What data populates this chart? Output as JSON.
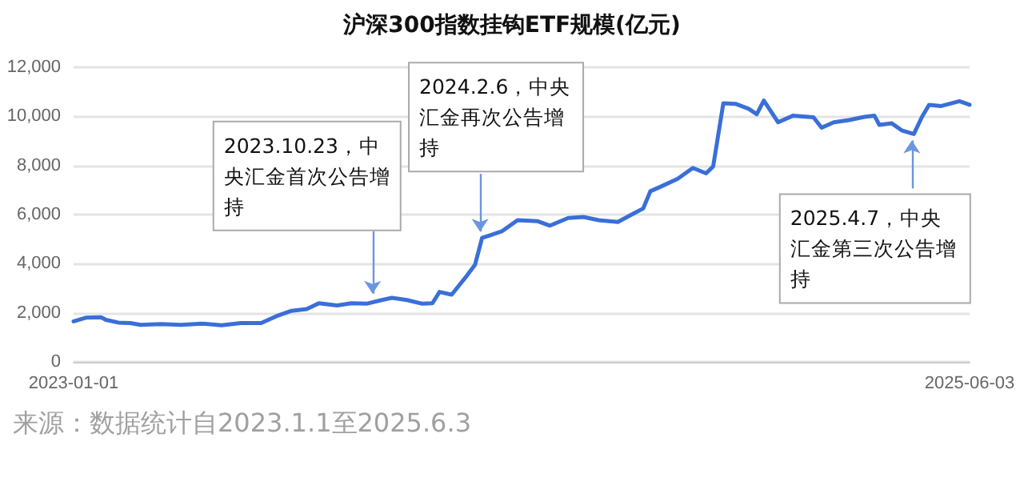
{
  "chart_data": {
    "type": "line",
    "title": "沪深300指数挂钩ETF规模(亿元)",
    "x": [
      "2023-01-01",
      "2023-01-13",
      "2023-01-28",
      "2023-02-02",
      "2023-02-14",
      "2023-02-26",
      "2023-03-08",
      "2023-03-28",
      "2023-04-17",
      "2023-05-07",
      "2023-05-27",
      "2023-06-15",
      "2023-07-05",
      "2023-07-20",
      "2023-08-04",
      "2023-08-19",
      "2023-08-31",
      "2023-09-18",
      "2023-10-02",
      "2023-10-17",
      "2023-11-01",
      "2023-11-11",
      "2023-11-26",
      "2023-12-11",
      "2023-12-21",
      "2023-12-28",
      "2024-01-09",
      "2024-01-24",
      "2024-02-01",
      "2024-02-08",
      "2024-02-16",
      "2024-02-28",
      "2024-03-14",
      "2024-04-03",
      "2024-04-15",
      "2024-05-03",
      "2024-05-18",
      "2024-06-02",
      "2024-06-21",
      "2024-07-06",
      "2024-07-16",
      "2024-07-23",
      "2024-08-04",
      "2024-08-19",
      "2024-09-03",
      "2024-09-16",
      "2024-09-23",
      "2024-10-03",
      "2024-10-15",
      "2024-10-28",
      "2024-11-05",
      "2024-11-12",
      "2024-11-26",
      "2024-12-11",
      "2024-12-31",
      "2025-01-08",
      "2025-01-20",
      "2025-02-04",
      "2025-02-19",
      "2025-03-01",
      "2025-03-06",
      "2025-03-18",
      "2025-03-28",
      "2025-04-09",
      "2025-04-17",
      "2025-04-24",
      "2025-05-06",
      "2025-05-24",
      "2025-06-03"
    ],
    "series": [
      {
        "color": "#3a6fd8",
        "values": [
          1650,
          1800,
          1820,
          1710,
          1600,
          1580,
          1510,
          1540,
          1510,
          1560,
          1490,
          1580,
          1580,
          1860,
          2080,
          2150,
          2390,
          2300,
          2390,
          2370,
          2520,
          2610,
          2520,
          2370,
          2390,
          2850,
          2740,
          3510,
          3950,
          5050,
          5160,
          5330,
          5770,
          5730,
          5550,
          5860,
          5900,
          5770,
          5700,
          6030,
          6250,
          6950,
          7170,
          7460,
          7900,
          7680,
          7960,
          10530,
          10510,
          10310,
          10090,
          10640,
          9760,
          10030,
          9960,
          9540,
          9760,
          9850,
          9980,
          10030,
          9650,
          9720,
          9430,
          9280,
          9980,
          10470,
          10420,
          10620,
          10470
        ]
      }
    ],
    "xlim": [
      "2023-01-01",
      "2025-06-03"
    ],
    "xticks": [
      "2023-01-01",
      "2025-06-03"
    ],
    "ylim": [
      0,
      12000
    ],
    "yticks": [
      0,
      {
        "value": 2000,
        "label": "2,000"
      },
      {
        "value": 4000,
        "label": "4,000"
      },
      {
        "value": 6000,
        "label": "6,000"
      },
      {
        "value": 8000,
        "label": "8,000"
      },
      {
        "value": 10000,
        "label": "10,000"
      },
      {
        "value": 12000,
        "label": "12,000"
      }
    ],
    "grid": "y",
    "marker": "none",
    "line_style": "solid",
    "annotations": [
      {
        "text": "2023.10.23，中央汇金首次公告增持",
        "x": "2023-10-23",
        "y": 2520
      },
      {
        "text": "2024.2.6，中央汇金再次公告增持",
        "x": "2024-02-06",
        "y": 5050
      },
      {
        "text": "2025.4.7，中央汇金第三次公告增持",
        "x": "2025-04-07",
        "y": 9280
      },
      "来源：数据统计自2023.1.1至2025.6.3"
    ]
  }
}
